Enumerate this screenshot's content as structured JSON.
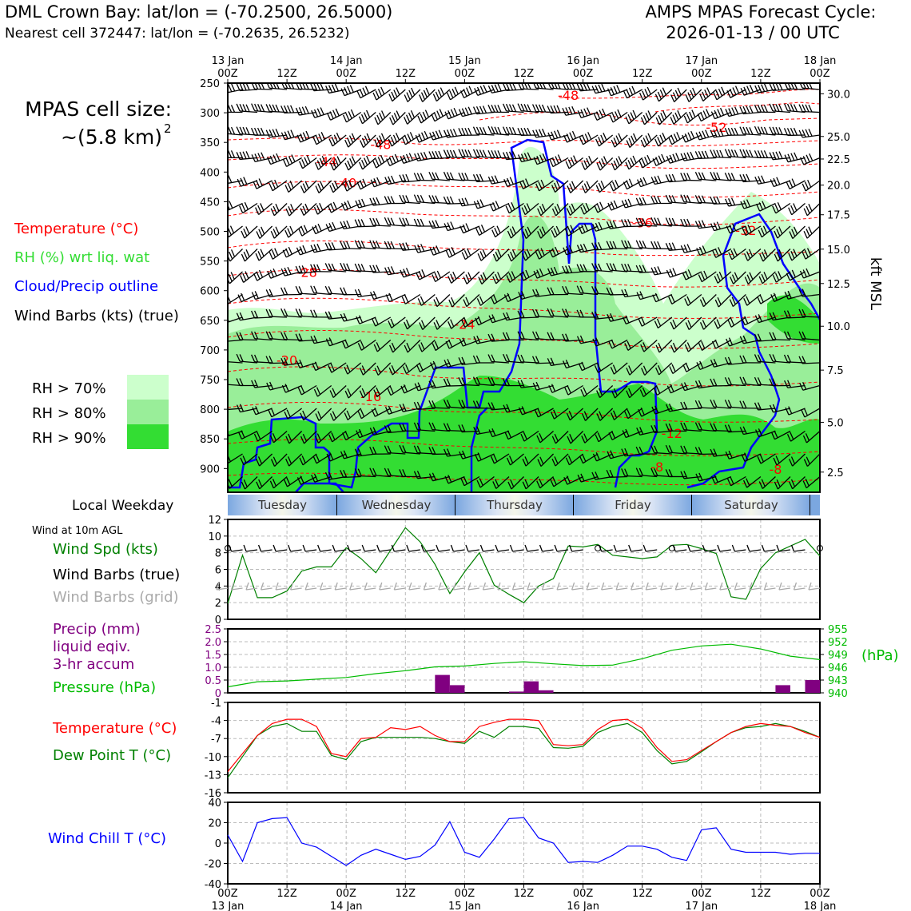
{
  "header": {
    "title": "DML Crown Bay: lat/lon = (-70.2500, 26.5000)",
    "subtitle": "Nearest cell 372447: lat/lon = (-70.2635, 26.5232)",
    "cycle_title": "AMPS MPAS Forecast Cycle:",
    "cycle_value": "2026-01-13 / 00 UTC",
    "cell_size_label": "MPAS cell size:",
    "cell_size_value": "~(5.8 km)",
    "cell_size_exp": "2"
  },
  "colors": {
    "temperature": "#ff0000",
    "rh_legend": "#33dd33",
    "rh70": "#ccffcc",
    "rh80": "#99ee99",
    "rh90": "#33dd33",
    "cloud": "#0000ff",
    "wind_spd": "#008000",
    "precip": "#800080",
    "pressure": "#00bb00",
    "dewpoint": "#008000",
    "windchill": "#0000ff",
    "grid_barbs": "#aaaaaa"
  },
  "legend": {
    "temperature": "Temperature (°C)",
    "rh": "RH (%) wrt liq. wat",
    "cloud": "Cloud/Precip outline",
    "barbs": "Wind Barbs (kts) (true)",
    "rh70": "RH > 70%",
    "rh80": "RH > 80%",
    "rh90": "RH > 90%"
  },
  "time_axis": {
    "ticks": [
      {
        "top": "13 Jan",
        "bottom": "00Z"
      },
      {
        "top": "",
        "bottom": "12Z"
      },
      {
        "top": "14 Jan",
        "bottom": "00Z"
      },
      {
        "top": "",
        "bottom": "12Z"
      },
      {
        "top": "15 Jan",
        "bottom": "00Z"
      },
      {
        "top": "",
        "bottom": "12Z"
      },
      {
        "top": "16 Jan",
        "bottom": "00Z"
      },
      {
        "top": "",
        "bottom": "12Z"
      },
      {
        "top": "17 Jan",
        "bottom": "00Z"
      },
      {
        "top": "",
        "bottom": "12Z"
      },
      {
        "top": "18 Jan",
        "bottom": "00Z"
      }
    ]
  },
  "weekday": {
    "label": "Local Weekday",
    "days": [
      "Tuesday",
      "Wednesday",
      "Thursday",
      "Friday",
      "Saturday"
    ]
  },
  "chart_data": [
    {
      "type": "heatmap",
      "panel": "cross-section",
      "y_ticks_pressure": [
        250,
        300,
        350,
        400,
        450,
        500,
        550,
        600,
        650,
        700,
        750,
        800,
        850,
        900
      ],
      "y_ticks_kft": [
        "30.0",
        "25.0",
        "22.5",
        "20.0",
        "17.5",
        "15.0",
        "12.5",
        "10.0",
        "7.5",
        "5.0",
        "2.5"
      ],
      "y_ticks_kft_pressure": [
        268,
        340,
        378,
        422,
        472,
        530,
        588,
        660,
        734,
        822,
        906
      ],
      "y2label": "kft MSL",
      "temperature_labels": [
        {
          "text": "-48",
          "x_hours": 69,
          "p": 270
        },
        {
          "text": "-52",
          "x_hours": 99,
          "p": 324
        },
        {
          "text": "-48",
          "x_hours": 31,
          "p": 353
        },
        {
          "text": "-44",
          "x_hours": 20,
          "p": 382
        },
        {
          "text": "-40",
          "x_hours": 24,
          "p": 418
        },
        {
          "text": "-36",
          "x_hours": 84,
          "p": 485
        },
        {
          "text": "-32",
          "x_hours": 105,
          "p": 498
        },
        {
          "text": "-28",
          "x_hours": 16,
          "p": 569
        },
        {
          "text": "-24",
          "x_hours": 48,
          "p": 656
        },
        {
          "text": "-20",
          "x_hours": 12,
          "p": 717
        },
        {
          "text": "-16",
          "x_hours": 29,
          "p": 778
        },
        {
          "text": "-12",
          "x_hours": 90,
          "p": 840
        },
        {
          "text": "-8",
          "x_hours": 87,
          "p": 897
        },
        {
          "text": "-8",
          "x_hours": 111,
          "p": 901
        }
      ]
    },
    {
      "type": "line",
      "panel": "surface-wind",
      "title": "Wind at 10m AGL",
      "series_labels": [
        "Wind Spd (kts)",
        "Wind Barbs (true)",
        "Wind Barbs (grid)"
      ],
      "x_hours": [
        0,
        3,
        6,
        9,
        12,
        15,
        18,
        21,
        24,
        27,
        30,
        33,
        36,
        39,
        42,
        45,
        48,
        51,
        54,
        57,
        60,
        63,
        66,
        69,
        72,
        75,
        78,
        81,
        84,
        87,
        90,
        93,
        96,
        99,
        102,
        105,
        108,
        111,
        114,
        117,
        120
      ],
      "values": [
        1.9,
        7.7,
        2.6,
        2.6,
        3.4,
        5.8,
        6.3,
        6.3,
        8.6,
        7.3,
        5.6,
        8.3,
        11.0,
        9.3,
        6.6,
        3.1,
        5.7,
        8.0,
        4.1,
        3.0,
        2.0,
        4.0,
        4.9,
        8.8,
        8.7,
        9.0,
        7.7,
        7.5,
        7.3,
        7.5,
        8.9,
        9.0,
        8.5,
        7.9,
        2.7,
        2.4,
        6.1,
        8.0,
        8.8,
        9.6,
        7.6
      ],
      "ylim": [
        0,
        12
      ],
      "y_ticks": [
        0,
        2,
        4,
        6,
        8,
        10,
        12
      ]
    },
    {
      "type": "bar",
      "panel": "precip-pressure",
      "series_labels": [
        "Precip (mm)",
        "liquid eqiv.",
        "3-hr accum",
        "Pressure (hPa)"
      ],
      "y2label": "(hPa)",
      "precip_ylim": [
        0,
        2.5
      ],
      "precip_ticks": [
        "0",
        "0.5",
        "1.0",
        "1.5",
        "2.0",
        "2.5"
      ],
      "pressure_ylim": [
        940,
        955
      ],
      "pressure_ticks": [
        940,
        943,
        946,
        949,
        952,
        955
      ],
      "precip_bars": [
        {
          "x_hours": 43.5,
          "value": 0.7
        },
        {
          "x_hours": 46.5,
          "value": 0.3
        },
        {
          "x_hours": 58.5,
          "value": 0.05
        },
        {
          "x_hours": 61.5,
          "value": 0.45
        },
        {
          "x_hours": 64.5,
          "value": 0.1
        },
        {
          "x_hours": 112.5,
          "value": 0.3
        },
        {
          "x_hours": 118.5,
          "value": 0.5
        }
      ],
      "pressure_x_hours": [
        0,
        6,
        12,
        18,
        24,
        30,
        36,
        42,
        48,
        54,
        60,
        66,
        72,
        78,
        84,
        90,
        96,
        102,
        108,
        114,
        120
      ],
      "pressure_values": [
        941.4,
        942.6,
        942.8,
        943.2,
        943.6,
        944.5,
        945.2,
        946.1,
        946.3,
        946.9,
        947.3,
        946.8,
        946.4,
        946.5,
        948.0,
        950.0,
        951.0,
        951.4,
        950.3,
        948.6,
        947.8
      ]
    },
    {
      "type": "line",
      "panel": "temperature",
      "series_labels": [
        "Temperature (°C)",
        "Dew Point T (°C)"
      ],
      "x_hours": [
        0,
        3,
        6,
        9,
        12,
        15,
        18,
        21,
        24,
        27,
        30,
        33,
        36,
        39,
        42,
        45,
        48,
        51,
        54,
        57,
        60,
        63,
        66,
        69,
        72,
        75,
        78,
        81,
        84,
        87,
        90,
        93,
        96,
        99,
        102,
        105,
        108,
        111,
        114,
        117,
        120
      ],
      "temperature": [
        -12.5,
        -9.5,
        -6.5,
        -4.5,
        -3.8,
        -3.8,
        -5.0,
        -9.5,
        -10.0,
        -7.0,
        -6.8,
        -5.2,
        -5.5,
        -5.0,
        -6.5,
        -7.5,
        -7.5,
        -5.0,
        -4.3,
        -3.8,
        -3.8,
        -4.0,
        -8.0,
        -8.2,
        -8.0,
        -5.5,
        -4.0,
        -3.8,
        -5.3,
        -8.5,
        -10.8,
        -10.5,
        -9.0,
        -7.5,
        -6.0,
        -5.0,
        -4.5,
        -4.8,
        -5.0,
        -6.0,
        -6.8
      ],
      "dewpoint": [
        -13.5,
        -10.0,
        -6.5,
        -5.0,
        -4.5,
        -5.8,
        -5.8,
        -9.8,
        -10.5,
        -7.5,
        -6.8,
        -6.8,
        -6.8,
        -6.8,
        -7.0,
        -7.5,
        -7.8,
        -5.8,
        -6.8,
        -5.0,
        -5.0,
        -5.3,
        -8.5,
        -8.6,
        -8.3,
        -6.0,
        -5.0,
        -4.5,
        -6.0,
        -9.0,
        -11.2,
        -10.8,
        -9.2,
        -7.5,
        -6.0,
        -5.2,
        -5.0,
        -4.5,
        -5.0,
        -5.8,
        -6.8
      ],
      "ylim": [
        -16,
        -1
      ],
      "y_ticks": [
        -16,
        -13,
        -10,
        -7,
        -4,
        -1
      ]
    },
    {
      "type": "line",
      "panel": "windchill",
      "series_labels": [
        "Wind Chill T (°C)"
      ],
      "x_hours": [
        0,
        3,
        6,
        9,
        12,
        15,
        18,
        21,
        24,
        27,
        30,
        33,
        36,
        39,
        42,
        45,
        48,
        51,
        54,
        57,
        60,
        63,
        66,
        69,
        72,
        75,
        78,
        81,
        84,
        87,
        90,
        93,
        96,
        99,
        102,
        105,
        108,
        111,
        114,
        117,
        120
      ],
      "values": [
        8,
        -18,
        20,
        24,
        25,
        0,
        -4,
        -13,
        -22,
        -12,
        -6,
        -11,
        -16,
        -13,
        -2,
        21,
        -9,
        -14,
        4,
        24,
        25,
        5,
        0,
        -19,
        -18,
        -19,
        -12,
        -3,
        -3,
        -6,
        -14,
        -17,
        13,
        15,
        -6,
        -9,
        -9,
        -9,
        -11,
        -10,
        -10
      ],
      "ylim": [
        -40,
        40
      ],
      "y_ticks": [
        -40,
        -20,
        0,
        20,
        40
      ]
    }
  ]
}
